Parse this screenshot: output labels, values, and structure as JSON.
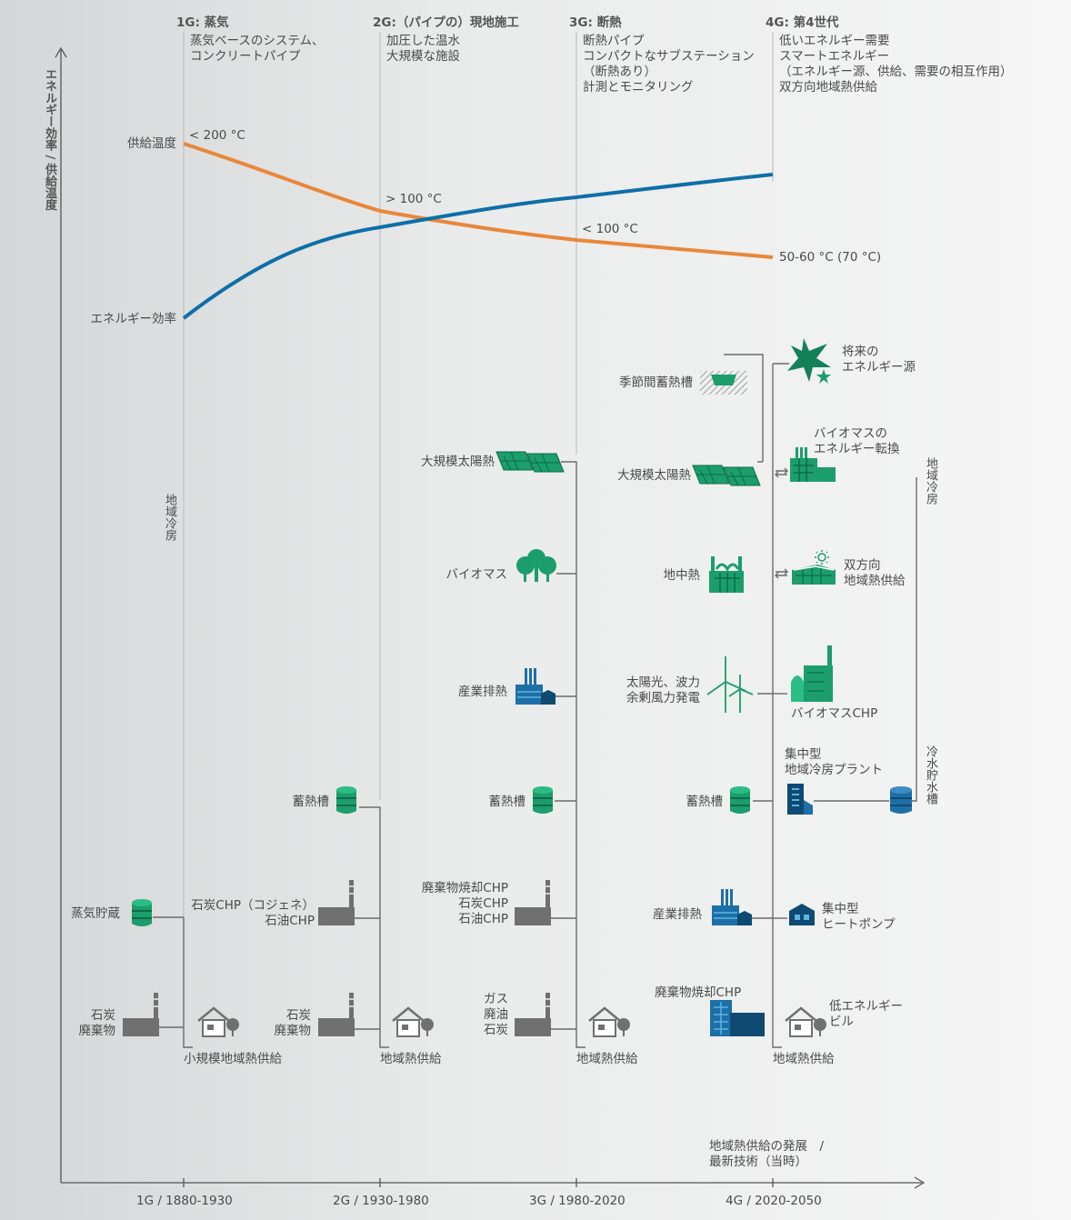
{
  "axes": {
    "y_label": "エネルギー効率 / 供給温度",
    "x_caption": "地域熱供給の発展　/\n最新技術（当時）",
    "x_ticks": [
      "1G / 1880-1930",
      "2G / 1930-1980",
      "3G / 1980-2020",
      "4G / 2020-2050"
    ]
  },
  "generations": [
    {
      "title": "1G: 蒸気",
      "desc": "蒸気ベースのシステム、\nコンクリートパイプ"
    },
    {
      "title": "2G:（パイプの）現地施工",
      "desc": "加圧した温水\n大規模な施設"
    },
    {
      "title": "3G: 断熱",
      "desc": "断熱パイプ\nコンパクトなサブステーション\n（断熱あり）\n計測とモニタリング"
    },
    {
      "title": "4G: 第4世代",
      "desc": "低いエネルギー需要\nスマートエネルギー\n（エネルギー源、供給、需要の相互作用）\n双方向地域熱供給"
    }
  ],
  "curves": {
    "temperature_label": "供給温度",
    "efficiency_label": "エネルギー効率",
    "temperature_points": [
      "< 200 °C",
      "> 100 °C",
      "< 100 °C",
      "50-60 °C (70 °C)"
    ],
    "temperature_color": "#e8873a",
    "efficiency_color": "#0e6fa7"
  },
  "g1": {
    "steam_storage": "蒸気貯蔵",
    "fuel": "石炭\n廃棄物",
    "network": "小規模地域熱供給",
    "cooling": "地域冷房"
  },
  "g2": {
    "storage": "蓄熱槽",
    "chp": "石炭CHP（コジェネ）\n石油CHP",
    "fuel": "石炭\n廃棄物",
    "network": "地域熱供給"
  },
  "g3": {
    "solar": "大規模太陽熱",
    "biomass": "バイオマス",
    "industrial": "産業排熱",
    "storage": "蓄熱槽",
    "chp": "廃棄物焼却CHP\n石炭CHP\n石油CHP",
    "fuel": "ガス\n廃油\n石炭",
    "network": "地域熱供給"
  },
  "g4_left": {
    "seasonal": "季節間蓄熱槽",
    "solar": "大規模太陽熱",
    "geothermal": "地中熱",
    "wind": "太陽光、波力\n余剰風力発電",
    "storage": "蓄熱槽",
    "industrial": "産業排熱",
    "waste_chp": "廃棄物焼却CHP"
  },
  "g4_right": {
    "future": "将来の\nエネルギー源",
    "biomass_conv": "バイオマスの\nエネルギー転換",
    "bidirectional": "双方向\n地域熱供給",
    "biomass_chp": "バイオマスCHP",
    "central_cooling": "集中型\n地域冷房プラント",
    "heat_pump": "集中型\nヒートポンプ",
    "low_energy": "低エネルギー\nビル",
    "network": "地域熱供給",
    "cooling": "地域冷房",
    "cold_storage": "冷水貯水槽"
  },
  "colors": {
    "green": "#1b9e6c",
    "dark_green": "#0d6b4a",
    "blue": "#1d6fa8",
    "navy": "#0f4a72",
    "grey": "#6e6e6e",
    "line": "#6b6b6b"
  }
}
